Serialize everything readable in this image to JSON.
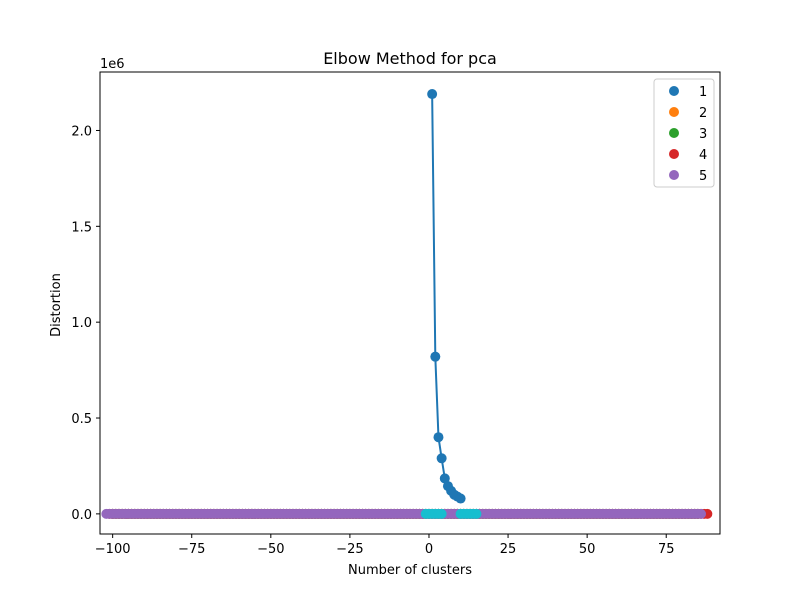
{
  "chart_data": {
    "type": "scatter",
    "title": "Elbow Method for pca",
    "xlabel": "Number of clusters",
    "ylabel": "Distortion",
    "y_offset_label": "1e6",
    "xlim": [
      -104,
      92
    ],
    "ylim": [
      -105000,
      2305000
    ],
    "x_ticks": [
      -100,
      -75,
      -50,
      -25,
      0,
      25,
      50,
      75
    ],
    "x_tick_labels": [
      "−100",
      "−75",
      "−50",
      "−25",
      "0",
      "25",
      "50",
      "75"
    ],
    "y_ticks": [
      0,
      500000,
      1000000,
      1500000,
      2000000
    ],
    "y_tick_labels": [
      "0.0",
      "0.5",
      "1.0",
      "1.5",
      "2.0"
    ],
    "grid": false,
    "legend_placement": "top-right",
    "elbow_line": {
      "color": "#1f77b4",
      "x": [
        1,
        2,
        3,
        4,
        5,
        6,
        7,
        8,
        9,
        10
      ],
      "y": [
        2190000,
        820000,
        400000,
        290000,
        185000,
        145000,
        120000,
        100000,
        90000,
        80000
      ]
    },
    "series": [
      {
        "name": "1",
        "color": "#1f77b4",
        "x_range": [
          -100,
          85
        ],
        "y": 0
      },
      {
        "name": "2",
        "color": "#ff7f0e",
        "x_range": [
          -100,
          85
        ],
        "y": 0
      },
      {
        "name": "3",
        "color": "#2ca02c",
        "x_range": [
          -100,
          85
        ],
        "y": 0
      },
      {
        "name": "4",
        "color": "#d62728",
        "x_range": [
          -101,
          88
        ],
        "y": 0
      },
      {
        "name": "5",
        "color": "#9467bd",
        "x_range": [
          -102,
          86
        ],
        "y": 0
      }
    ],
    "extra_scatter": {
      "color": "#17becf",
      "x": [
        -1,
        0,
        1,
        2,
        3,
        4,
        10,
        11,
        12,
        13,
        14,
        15
      ],
      "y": 0
    }
  }
}
